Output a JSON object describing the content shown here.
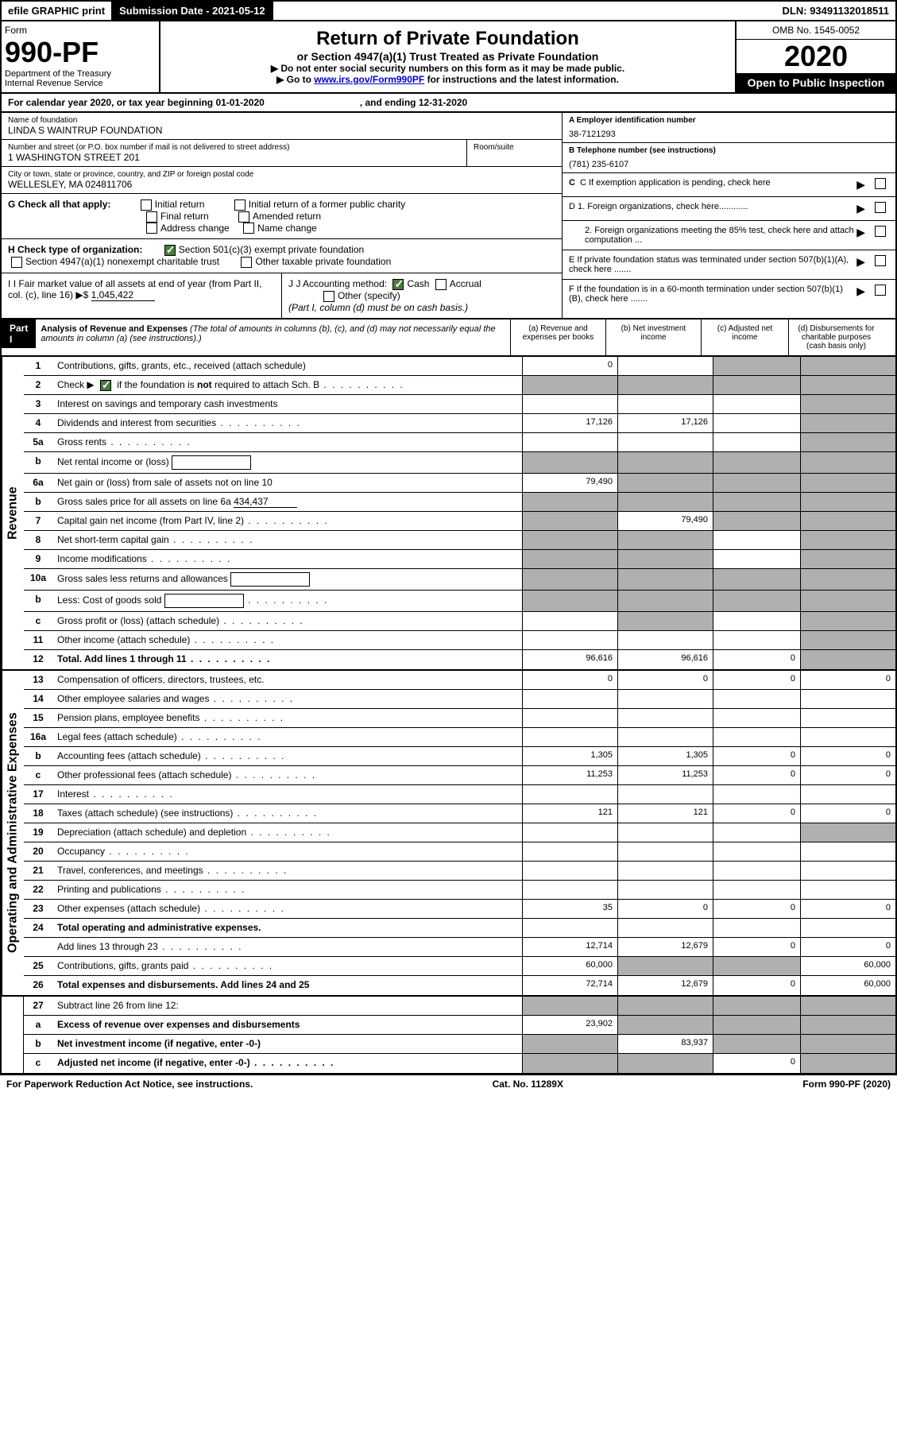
{
  "topbar": {
    "efile": "efile GRAPHIC print",
    "submission": "Submission Date - 2021-05-12",
    "dln": "DLN: 93491132018511"
  },
  "header": {
    "form_label": "Form",
    "form_num": "990-PF",
    "dept": "Department of the Treasury",
    "irs": "Internal Revenue Service",
    "title": "Return of Private Foundation",
    "subtitle": "or Section 4947(a)(1) Trust Treated as Private Foundation",
    "instr1": "▶ Do not enter social security numbers on this form as it may be made public.",
    "instr2_pre": "▶ Go to ",
    "instr2_link": "www.irs.gov/Form990PF",
    "instr2_post": " for instructions and the latest information.",
    "omb": "OMB No. 1545-0052",
    "year": "2020",
    "open": "Open to Public Inspection"
  },
  "calendar": {
    "text1": "For calendar year 2020, or tax year beginning 01-01-2020",
    "text2": ", and ending 12-31-2020"
  },
  "info": {
    "name_label": "Name of foundation",
    "name": "LINDA S WAINTRUP FOUNDATION",
    "addr_label": "Number and street (or P.O. box number if mail is not delivered to street address)",
    "addr": "1 WASHINGTON STREET 201",
    "room_label": "Room/suite",
    "city_label": "City or town, state or province, country, and ZIP or foreign postal code",
    "city": "WELLESLEY, MA  024811706",
    "a_label": "A Employer identification number",
    "a_val": "38-7121293",
    "b_label": "B Telephone number (see instructions)",
    "b_val": "(781) 235-6107",
    "c_label": "C If exemption application is pending, check here",
    "d1": "D 1. Foreign organizations, check here............",
    "d2": "2. Foreign organizations meeting the 85% test, check here and attach computation ...",
    "e_label": "E  If private foundation status was terminated under section 507(b)(1)(A), check here .......",
    "f_label": "F  If the foundation is in a 60-month termination under section 507(b)(1)(B), check here .......",
    "g_label": "G Check all that apply:",
    "g_opts": [
      "Initial return",
      "Initial return of a former public charity",
      "Final return",
      "Amended return",
      "Address change",
      "Name change"
    ],
    "h_label": "H Check type of organization:",
    "h_opt1": "Section 501(c)(3) exempt private foundation",
    "h_opt2": "Section 4947(a)(1) nonexempt charitable trust",
    "h_opt3": "Other taxable private foundation",
    "i_label": "I Fair market value of all assets at end of year (from Part II, col. (c), line 16)",
    "i_val": "1,045,422",
    "j_label": "J Accounting method:",
    "j_cash": "Cash",
    "j_accrual": "Accrual",
    "j_other": "Other (specify)",
    "j_note": "(Part I, column (d) must be on cash basis.)"
  },
  "part1": {
    "label": "Part I",
    "title": "Analysis of Revenue and Expenses",
    "note": "(The total of amounts in columns (b), (c), and (d) may not necessarily equal the amounts in column (a) (see instructions).)",
    "col_a": "(a)    Revenue and expenses per books",
    "col_b": "(b)    Net investment income",
    "col_c": "(c)    Adjusted net income",
    "col_d": "(d)    Disbursements for charitable purposes (cash basis only)"
  },
  "side_labels": {
    "revenue": "Revenue",
    "expenses": "Operating and Administrative Expenses"
  },
  "rows": [
    {
      "n": "1",
      "label": "Contributions, gifts, grants, etc., received (attach schedule)",
      "a": "0",
      "b": "",
      "c": "s",
      "d": "s"
    },
    {
      "n": "2",
      "label": "Check ▶ [X] if the foundation is not required to attach Sch. B",
      "dots": true,
      "nocells": true
    },
    {
      "n": "3",
      "label": "Interest on savings and temporary cash investments",
      "a": "",
      "b": "",
      "c": "",
      "d": "s"
    },
    {
      "n": "4",
      "label": "Dividends and interest from securities",
      "dots": true,
      "a": "17,126",
      "b": "17,126",
      "c": "",
      "d": "s"
    },
    {
      "n": "5a",
      "label": "Gross rents",
      "dots": true,
      "a": "",
      "b": "",
      "c": "",
      "d": "s"
    },
    {
      "n": "b",
      "label": "Net rental income or (loss)",
      "box": true,
      "a": "s",
      "b": "s",
      "c": "s",
      "d": "s"
    },
    {
      "n": "6a",
      "label": "Net gain or (loss) from sale of assets not on line 10",
      "a": "79,490",
      "b": "s",
      "c": "s",
      "d": "s"
    },
    {
      "n": "b",
      "label": "Gross sales price for all assets on line 6a",
      "val": "434,437",
      "a": "s",
      "b": "s",
      "c": "s",
      "d": "s"
    },
    {
      "n": "7",
      "label": "Capital gain net income (from Part IV, line 2)",
      "dots": true,
      "a": "s",
      "b": "79,490",
      "c": "s",
      "d": "s"
    },
    {
      "n": "8",
      "label": "Net short-term capital gain",
      "dots": true,
      "a": "s",
      "b": "s",
      "c": "",
      "d": "s"
    },
    {
      "n": "9",
      "label": "Income modifications",
      "dots": true,
      "a": "s",
      "b": "s",
      "c": "",
      "d": "s"
    },
    {
      "n": "10a",
      "label": "Gross sales less returns and allowances",
      "box": true,
      "a": "s",
      "b": "s",
      "c": "s",
      "d": "s"
    },
    {
      "n": "b",
      "label": "Less: Cost of goods sold",
      "dots": true,
      "box": true,
      "a": "s",
      "b": "s",
      "c": "s",
      "d": "s"
    },
    {
      "n": "c",
      "label": "Gross profit or (loss) (attach schedule)",
      "dots": true,
      "a": "",
      "b": "s",
      "c": "",
      "d": "s"
    },
    {
      "n": "11",
      "label": "Other income (attach schedule)",
      "dots": true,
      "a": "",
      "b": "",
      "c": "",
      "d": "s"
    },
    {
      "n": "12",
      "label": "Total. Add lines 1 through 11",
      "dots": true,
      "bold": true,
      "a": "96,616",
      "b": "96,616",
      "c": "0",
      "d": "s"
    }
  ],
  "exp_rows": [
    {
      "n": "13",
      "label": "Compensation of officers, directors, trustees, etc.",
      "a": "0",
      "b": "0",
      "c": "0",
      "d": "0"
    },
    {
      "n": "14",
      "label": "Other employee salaries and wages",
      "dots": true,
      "a": "",
      "b": "",
      "c": "",
      "d": ""
    },
    {
      "n": "15",
      "label": "Pension plans, employee benefits",
      "dots": true,
      "a": "",
      "b": "",
      "c": "",
      "d": ""
    },
    {
      "n": "16a",
      "label": "Legal fees (attach schedule)",
      "dots": true,
      "a": "",
      "b": "",
      "c": "",
      "d": ""
    },
    {
      "n": "b",
      "label": "Accounting fees (attach schedule)",
      "dots": true,
      "a": "1,305",
      "b": "1,305",
      "c": "0",
      "d": "0"
    },
    {
      "n": "c",
      "label": "Other professional fees (attach schedule)",
      "dots": true,
      "a": "11,253",
      "b": "11,253",
      "c": "0",
      "d": "0"
    },
    {
      "n": "17",
      "label": "Interest",
      "dots": true,
      "a": "",
      "b": "",
      "c": "",
      "d": ""
    },
    {
      "n": "18",
      "label": "Taxes (attach schedule) (see instructions)",
      "dots": true,
      "a": "121",
      "b": "121",
      "c": "0",
      "d": "0"
    },
    {
      "n": "19",
      "label": "Depreciation (attach schedule) and depletion",
      "dots": true,
      "a": "",
      "b": "",
      "c": "",
      "d": "s"
    },
    {
      "n": "20",
      "label": "Occupancy",
      "dots": true,
      "a": "",
      "b": "",
      "c": "",
      "d": ""
    },
    {
      "n": "21",
      "label": "Travel, conferences, and meetings",
      "dots": true,
      "a": "",
      "b": "",
      "c": "",
      "d": ""
    },
    {
      "n": "22",
      "label": "Printing and publications",
      "dots": true,
      "a": "",
      "b": "",
      "c": "",
      "d": ""
    },
    {
      "n": "23",
      "label": "Other expenses (attach schedule)",
      "dots": true,
      "a": "35",
      "b": "0",
      "c": "0",
      "d": "0"
    },
    {
      "n": "24",
      "label": "Total operating and administrative expenses.",
      "bold": true,
      "a": "",
      "b": "",
      "c": "",
      "d": ""
    },
    {
      "n": "",
      "label": "Add lines 13 through 23",
      "dots": true,
      "a": "12,714",
      "b": "12,679",
      "c": "0",
      "d": "0"
    },
    {
      "n": "25",
      "label": "Contributions, gifts, grants paid",
      "dots": true,
      "a": "60,000",
      "b": "s",
      "c": "s",
      "d": "60,000"
    },
    {
      "n": "26",
      "label": "Total expenses and disbursements. Add lines 24 and 25",
      "bold": true,
      "a": "72,714",
      "b": "12,679",
      "c": "0",
      "d": "60,000"
    }
  ],
  "bottom_rows": [
    {
      "n": "27",
      "label": "Subtract line 26 from line 12:",
      "a": "s",
      "b": "s",
      "c": "s",
      "d": "s"
    },
    {
      "n": "a",
      "label": "Excess of revenue over expenses and disbursements",
      "bold": true,
      "a": "23,902",
      "b": "s",
      "c": "s",
      "d": "s"
    },
    {
      "n": "b",
      "label": "Net investment income (if negative, enter -0-)",
      "bold": true,
      "a": "s",
      "b": "83,937",
      "c": "s",
      "d": "s"
    },
    {
      "n": "c",
      "label": "Adjusted net income (if negative, enter -0-)",
      "bold": true,
      "dots": true,
      "a": "s",
      "b": "s",
      "c": "0",
      "d": "s"
    }
  ],
  "footer": {
    "left": "For Paperwork Reduction Act Notice, see instructions.",
    "center": "Cat. No. 11289X",
    "right": "Form 990-PF (2020)"
  }
}
